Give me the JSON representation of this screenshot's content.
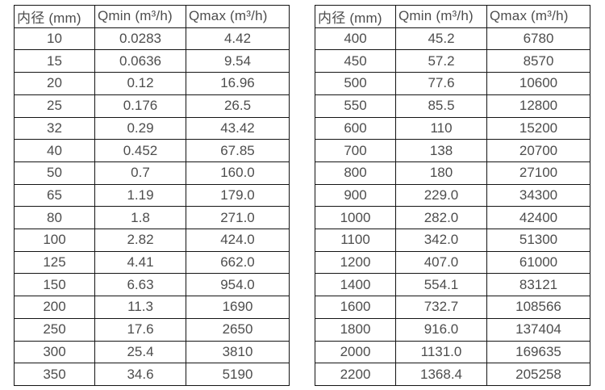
{
  "page": {
    "background": "#ffffff",
    "text_color": "#4d4d4d",
    "border_color": "#141414"
  },
  "tables": [
    {
      "name": "small-diameter-flow-table",
      "columns": [
        "内径 (mm)",
        "Qmin (m³/h)",
        "Qmax (m³/h)"
      ],
      "rows": [
        [
          "10",
          "0.0283",
          "4.42"
        ],
        [
          "15",
          "0.0636",
          "9.54"
        ],
        [
          "20",
          "0.12",
          "16.96"
        ],
        [
          "25",
          "0.176",
          "26.5"
        ],
        [
          "32",
          "0.29",
          "43.42"
        ],
        [
          "40",
          "0.452",
          "67.85"
        ],
        [
          "50",
          "0.7",
          "160.0"
        ],
        [
          "65",
          "1.19",
          "179.0"
        ],
        [
          "80",
          "1.8",
          "271.0"
        ],
        [
          "100",
          "2.82",
          "424.0"
        ],
        [
          "125",
          "4.41",
          "662.0"
        ],
        [
          "150",
          "6.63",
          "954.0"
        ],
        [
          "200",
          "11.3",
          "1690"
        ],
        [
          "250",
          "17.6",
          "2650"
        ],
        [
          "300",
          "25.4",
          "3810"
        ],
        [
          "350",
          "34.6",
          "5190"
        ]
      ]
    },
    {
      "name": "large-diameter-flow-table",
      "columns": [
        "内径 (mm)",
        "Qmin (m³/h)",
        "Qmax (m³/h)"
      ],
      "rows": [
        [
          "400",
          "45.2",
          "6780"
        ],
        [
          "450",
          "57.2",
          "8570"
        ],
        [
          "500",
          "77.6",
          "10600"
        ],
        [
          "550",
          "85.5",
          "12800"
        ],
        [
          "600",
          "110",
          "15200"
        ],
        [
          "700",
          "138",
          "20700"
        ],
        [
          "800",
          "180",
          "27100"
        ],
        [
          "900",
          "229.0",
          "34300"
        ],
        [
          "1000",
          "282.0",
          "42400"
        ],
        [
          "1100",
          "342.0",
          "51300"
        ],
        [
          "1200",
          "407.0",
          "61000"
        ],
        [
          "1400",
          "554.1",
          "83121"
        ],
        [
          "1600",
          "732.7",
          "108566"
        ],
        [
          "1800",
          "916.0",
          "137404"
        ],
        [
          "2000",
          "1131.0",
          "169635"
        ],
        [
          "2200",
          "1368.4",
          "205258"
        ]
      ]
    }
  ]
}
